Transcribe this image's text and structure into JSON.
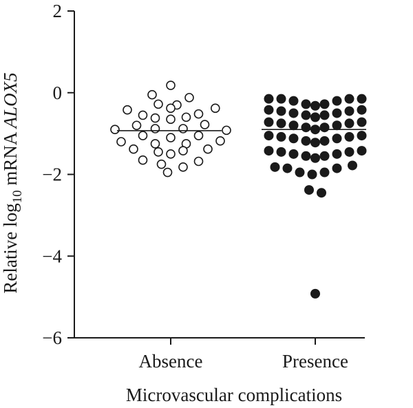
{
  "chart_data": {
    "type": "scatter",
    "title": "",
    "xlabel": "Microvascular complications",
    "ylabel": {
      "prefix": "Relative log",
      "subscript": "10",
      "middle": " mRNA ",
      "gene": "ALOX5"
    },
    "ylim": [
      -6,
      2
    ],
    "yticks": [
      {
        "value": 2,
        "label": "2"
      },
      {
        "value": 0,
        "label": "0"
      },
      {
        "value": -2,
        "label": "−2"
      },
      {
        "value": -4,
        "label": "−4"
      },
      {
        "value": -6,
        "label": "−6"
      }
    ],
    "categories": [
      "Absence",
      "Presence"
    ],
    "grid": false,
    "series": [
      {
        "category": "Absence",
        "marker": "open-circle",
        "median": -0.93,
        "points": [
          {
            "dx": 0.0,
            "y": 0.18
          },
          {
            "dx": -0.3,
            "y": -0.05
          },
          {
            "dx": 0.3,
            "y": -0.12
          },
          {
            "dx": -0.2,
            "y": -0.28
          },
          {
            "dx": 0.1,
            "y": -0.3
          },
          {
            "dx": -0.7,
            "y": -0.42
          },
          {
            "dx": -0.45,
            "y": -0.55
          },
          {
            "dx": 0.0,
            "y": -0.38
          },
          {
            "dx": 0.45,
            "y": -0.52
          },
          {
            "dx": 0.72,
            "y": -0.38
          },
          {
            "dx": -0.25,
            "y": -0.62
          },
          {
            "dx": 0.25,
            "y": -0.6
          },
          {
            "dx": 0.0,
            "y": -0.65
          },
          {
            "dx": -0.55,
            "y": -0.8
          },
          {
            "dx": 0.55,
            "y": -0.78
          },
          {
            "dx": -0.9,
            "y": -0.9
          },
          {
            "dx": -0.25,
            "y": -0.88
          },
          {
            "dx": 0.2,
            "y": -0.88
          },
          {
            "dx": 0.9,
            "y": -0.92
          },
          {
            "dx": -0.45,
            "y": -1.05
          },
          {
            "dx": 0.0,
            "y": -1.1
          },
          {
            "dx": 0.45,
            "y": -1.05
          },
          {
            "dx": -0.8,
            "y": -1.2
          },
          {
            "dx": 0.8,
            "y": -1.18
          },
          {
            "dx": -0.25,
            "y": -1.25
          },
          {
            "dx": 0.25,
            "y": -1.25
          },
          {
            "dx": -0.6,
            "y": -1.38
          },
          {
            "dx": -0.2,
            "y": -1.45
          },
          {
            "dx": 0.2,
            "y": -1.42
          },
          {
            "dx": 0.6,
            "y": -1.38
          },
          {
            "dx": 0.0,
            "y": -1.5
          },
          {
            "dx": -0.45,
            "y": -1.65
          },
          {
            "dx": 0.45,
            "y": -1.68
          },
          {
            "dx": -0.15,
            "y": -1.75
          },
          {
            "dx": 0.2,
            "y": -1.82
          },
          {
            "dx": -0.05,
            "y": -1.95
          }
        ]
      },
      {
        "category": "Presence",
        "marker": "filled-circle",
        "median": -0.9,
        "points": [
          {
            "dx": -0.75,
            "y": -0.15
          },
          {
            "dx": -0.55,
            "y": -0.15
          },
          {
            "dx": -0.35,
            "y": -0.2
          },
          {
            "dx": -0.15,
            "y": -0.28
          },
          {
            "dx": 0.0,
            "y": -0.32
          },
          {
            "dx": 0.15,
            "y": -0.28
          },
          {
            "dx": 0.35,
            "y": -0.2
          },
          {
            "dx": 0.55,
            "y": -0.15
          },
          {
            "dx": 0.75,
            "y": -0.15
          },
          {
            "dx": -0.75,
            "y": -0.42
          },
          {
            "dx": -0.55,
            "y": -0.45
          },
          {
            "dx": -0.35,
            "y": -0.5
          },
          {
            "dx": -0.15,
            "y": -0.55
          },
          {
            "dx": 0.0,
            "y": -0.6
          },
          {
            "dx": 0.15,
            "y": -0.55
          },
          {
            "dx": 0.35,
            "y": -0.5
          },
          {
            "dx": 0.55,
            "y": -0.45
          },
          {
            "dx": 0.75,
            "y": -0.42
          },
          {
            "dx": -0.75,
            "y": -0.72
          },
          {
            "dx": -0.55,
            "y": -0.75
          },
          {
            "dx": -0.35,
            "y": -0.8
          },
          {
            "dx": -0.15,
            "y": -0.85
          },
          {
            "dx": 0.0,
            "y": -0.9
          },
          {
            "dx": 0.15,
            "y": -0.85
          },
          {
            "dx": 0.35,
            "y": -0.8
          },
          {
            "dx": 0.55,
            "y": -0.75
          },
          {
            "dx": 0.75,
            "y": -0.72
          },
          {
            "dx": -0.75,
            "y": -1.05
          },
          {
            "dx": -0.55,
            "y": -1.08
          },
          {
            "dx": -0.35,
            "y": -1.12
          },
          {
            "dx": -0.15,
            "y": -1.18
          },
          {
            "dx": 0.0,
            "y": -1.22
          },
          {
            "dx": 0.15,
            "y": -1.18
          },
          {
            "dx": 0.35,
            "y": -1.12
          },
          {
            "dx": 0.55,
            "y": -1.08
          },
          {
            "dx": 0.75,
            "y": -1.05
          },
          {
            "dx": -0.75,
            "y": -1.42
          },
          {
            "dx": -0.55,
            "y": -1.45
          },
          {
            "dx": -0.35,
            "y": -1.5
          },
          {
            "dx": -0.15,
            "y": -1.55
          },
          {
            "dx": 0.0,
            "y": -1.6
          },
          {
            "dx": 0.15,
            "y": -1.55
          },
          {
            "dx": 0.35,
            "y": -1.5
          },
          {
            "dx": 0.55,
            "y": -1.45
          },
          {
            "dx": 0.75,
            "y": -1.42
          },
          {
            "dx": -0.65,
            "y": -1.82
          },
          {
            "dx": -0.45,
            "y": -1.85
          },
          {
            "dx": -0.25,
            "y": -1.95
          },
          {
            "dx": -0.05,
            "y": -2.0
          },
          {
            "dx": 0.15,
            "y": -1.95
          },
          {
            "dx": 0.35,
            "y": -1.85
          },
          {
            "dx": 0.6,
            "y": -1.78
          },
          {
            "dx": -0.1,
            "y": -2.38
          },
          {
            "dx": 0.1,
            "y": -2.45
          },
          {
            "dx": 0.0,
            "y": -4.92
          }
        ]
      }
    ]
  }
}
